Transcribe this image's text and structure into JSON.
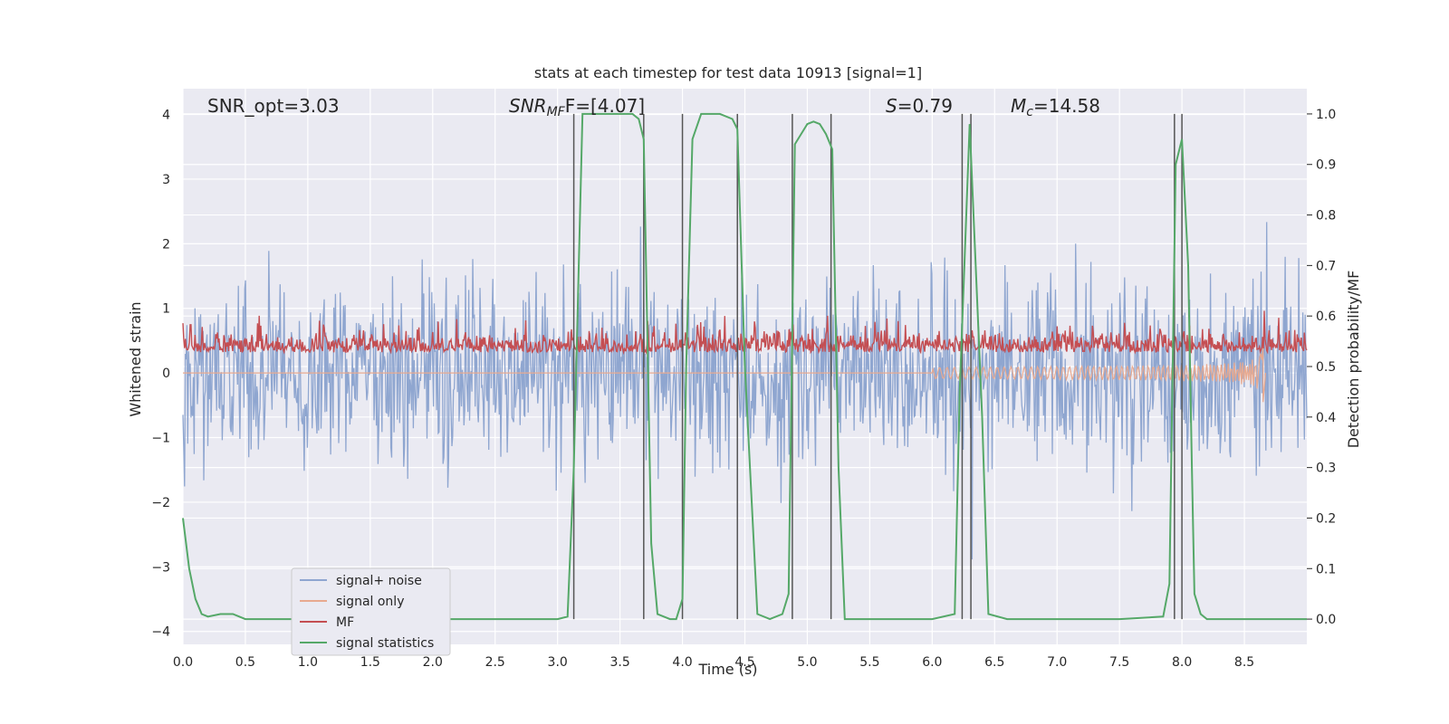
{
  "chart_data": {
    "type": "line",
    "title": "stats at each timestep for test data 10913 [signal=1]",
    "xlabel": "Time (s)",
    "ylabel": "Whitened strain",
    "y2label": "Detection probability/MF",
    "xlim": [
      0.0,
      9.0
    ],
    "ylim": [
      -4.2,
      4.4
    ],
    "y2lim": [
      -0.05,
      1.05
    ],
    "xticks": [
      "0.0",
      "0.5",
      "1.0",
      "1.5",
      "2.0",
      "2.5",
      "3.0",
      "3.5",
      "4.0",
      "4.5",
      "5.0",
      "5.5",
      "6.0",
      "6.5",
      "7.0",
      "7.5",
      "8.0",
      "8.5"
    ],
    "yticks": [
      "4",
      "3",
      "2",
      "1",
      "0",
      "−1",
      "−2",
      "−3",
      "−4"
    ],
    "y2ticks": [
      "1.0",
      "0.9",
      "0.8",
      "0.7",
      "0.6",
      "0.5",
      "0.4",
      "0.3",
      "0.2",
      "0.1",
      "0.0"
    ],
    "grid": true,
    "legend_position": "lower-left",
    "annotations": {
      "snr_opt": "SNR_opt=3.03",
      "snr_mf_base": "SNR",
      "snr_mf_sub": "MF",
      "snr_mf_value": "F=[4.07]",
      "s_var": "S",
      "s_value": "=0.79",
      "mc_base": "M",
      "mc_sub": "c",
      "mc_value": "=14.58"
    },
    "series": [
      {
        "name": "signal+ noise",
        "color": "#8fa6d0",
        "axis": "left",
        "style": "noise",
        "typical_amplitude": 1.5
      },
      {
        "name": "signal only",
        "color": "#e8a98f",
        "axis": "left",
        "style": "chirp",
        "peak_time": 8.65,
        "peak_value": -0.45
      },
      {
        "name": "MF",
        "color": "#c44e52",
        "axis": "left",
        "style": "noise",
        "range": [
          0.0,
          1.0
        ]
      },
      {
        "name": "signal statistics",
        "color": "#55a868",
        "axis": "right",
        "x": [
          0.0,
          0.05,
          0.1,
          0.15,
          0.2,
          0.3,
          0.4,
          0.5,
          1.0,
          2.0,
          3.0,
          3.08,
          3.13,
          3.2,
          3.3,
          3.5,
          3.6,
          3.65,
          3.69,
          3.75,
          3.8,
          3.9,
          3.95,
          4.0,
          4.03,
          4.08,
          4.15,
          4.3,
          4.4,
          4.44,
          4.5,
          4.6,
          4.7,
          4.8,
          4.85,
          4.9,
          5.0,
          5.05,
          5.1,
          5.15,
          5.2,
          5.25,
          5.3,
          5.4,
          5.6,
          6.0,
          6.18,
          6.22,
          6.3,
          6.4,
          6.45,
          6.6,
          7.0,
          7.5,
          7.85,
          7.9,
          7.95,
          8.0,
          8.05,
          8.08,
          8.1,
          8.15,
          8.2,
          8.5,
          9.0
        ],
        "y": [
          0.2,
          0.1,
          0.04,
          0.01,
          0.005,
          0.01,
          0.01,
          0.0,
          0.0,
          0.0,
          0.0,
          0.005,
          0.3,
          1.0,
          1.0,
          1.0,
          1.0,
          0.99,
          0.95,
          0.15,
          0.01,
          0.0,
          0.0,
          0.04,
          0.5,
          0.95,
          1.0,
          1.0,
          0.99,
          0.97,
          0.5,
          0.01,
          0.0,
          0.01,
          0.05,
          0.94,
          0.98,
          0.985,
          0.98,
          0.96,
          0.93,
          0.3,
          0.0,
          0.0,
          0.0,
          0.0,
          0.01,
          0.45,
          0.98,
          0.4,
          0.01,
          0.0,
          0.0,
          0.0,
          0.005,
          0.07,
          0.9,
          0.95,
          0.7,
          0.3,
          0.05,
          0.01,
          0.0,
          0.0,
          0.0
        ]
      }
    ],
    "vlines": [
      3.13,
      3.69,
      4.0,
      4.44,
      4.88,
      5.19,
      6.24,
      6.31,
      7.94,
      8.0
    ]
  }
}
